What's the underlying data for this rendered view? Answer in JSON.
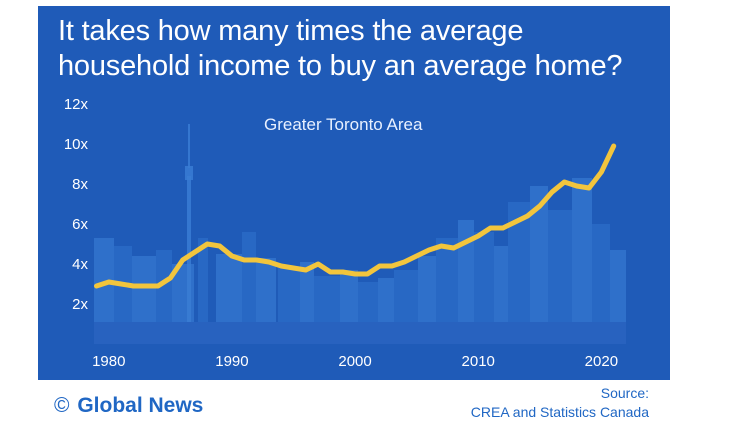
{
  "header": {
    "title_line1": "It takes how many times the average",
    "title_line2": "household income to buy an average home?"
  },
  "footer": {
    "brand": "Global News",
    "brand_mark": "©",
    "source_label": "Source:",
    "source_text": "CREA and Statistics Canada"
  },
  "colors": {
    "background": "#1f5bb8",
    "line": "#f2c53d",
    "text": "#ffffff",
    "brand": "#2067c4"
  },
  "chart_data": {
    "type": "line",
    "title": "It takes how many times the average household income to buy an average home?",
    "subtitle": "Greater Toronto Area",
    "xlabel": "",
    "ylabel": "",
    "x_ticks": [
      1980,
      1990,
      2000,
      2010,
      2020
    ],
    "y_ticks": [
      {
        "value": 2,
        "label": "2x"
      },
      {
        "value": 4,
        "label": "4x"
      },
      {
        "value": 6,
        "label": "6x"
      },
      {
        "value": 8,
        "label": "8x"
      },
      {
        "value": 10,
        "label": "10x"
      },
      {
        "value": 12,
        "label": "12x"
      }
    ],
    "xlim": [
      1978.8,
      2022
    ],
    "ylim": [
      0,
      12
    ],
    "grid": false,
    "series": [
      {
        "name": "",
        "color": "#f2c53d",
        "x": [
          1979,
          1980,
          1981,
          1982,
          1983,
          1984,
          1985,
          1986,
          1987,
          1988,
          1989,
          1990,
          1991,
          1992,
          1993,
          1994,
          1995,
          1996,
          1997,
          1998,
          1999,
          2000,
          2001,
          2002,
          2003,
          2004,
          2005,
          2006,
          2007,
          2008,
          2009,
          2010,
          2011,
          2012,
          2013,
          2014,
          2015,
          2016,
          2017,
          2018,
          2019,
          2020,
          2021
        ],
        "y": [
          2.9,
          3.1,
          3.0,
          2.9,
          2.9,
          2.9,
          3.3,
          4.2,
          4.6,
          5.0,
          4.9,
          4.4,
          4.2,
          4.2,
          4.1,
          3.9,
          3.8,
          3.7,
          4.0,
          3.6,
          3.6,
          3.5,
          3.5,
          3.9,
          3.9,
          4.1,
          4.4,
          4.7,
          4.9,
          4.8,
          5.1,
          5.4,
          5.8,
          5.8,
          6.1,
          6.4,
          6.9,
          7.6,
          8.1,
          7.9,
          7.8,
          8.6,
          9.9
        ]
      }
    ]
  }
}
